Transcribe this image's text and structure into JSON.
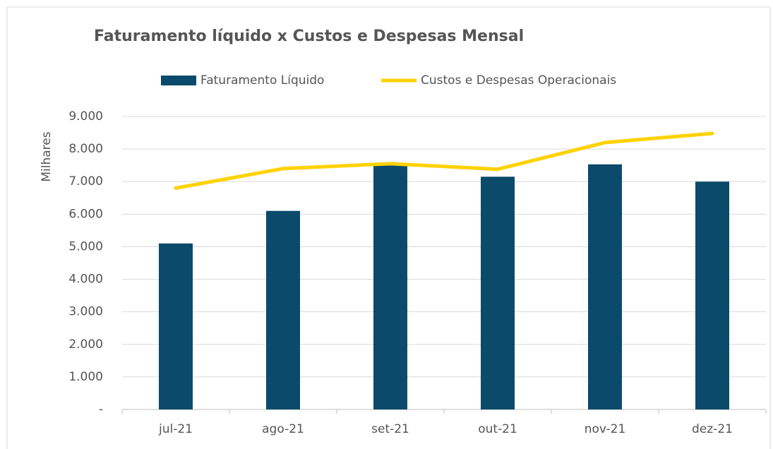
{
  "chart_data": {
    "type": "bar",
    "title": "Faturamento líquido x Custos e Despesas Mensal",
    "y_label": "Milhares",
    "categories": [
      "jul-21",
      "ago-21",
      "set-21",
      "out-21",
      "nov-21",
      "dez-21"
    ],
    "series": [
      {
        "name": "Faturamento Líquido",
        "type": "bar",
        "color": "#0b4a6b",
        "values": [
          5100,
          6100,
          7550,
          7150,
          7530,
          7000
        ]
      },
      {
        "name": "Custos e Despesas Operacionais",
        "type": "line",
        "color": "#ffd200",
        "values": [
          6800,
          7400,
          7550,
          7380,
          8200,
          8480
        ]
      }
    ],
    "ylim": [
      0,
      9000
    ],
    "yticks": [
      {
        "value": 0,
        "label": "-"
      },
      {
        "value": 1000,
        "label": "1.000"
      },
      {
        "value": 2000,
        "label": "2.000"
      },
      {
        "value": 3000,
        "label": "3.000"
      },
      {
        "value": 4000,
        "label": "4.000"
      },
      {
        "value": 5000,
        "label": "5.000"
      },
      {
        "value": 6000,
        "label": "6.000"
      },
      {
        "value": 7000,
        "label": "7.000"
      },
      {
        "value": 8000,
        "label": "8.000"
      },
      {
        "value": 9000,
        "label": "9.000"
      }
    ],
    "grid": true,
    "legend": "top"
  }
}
